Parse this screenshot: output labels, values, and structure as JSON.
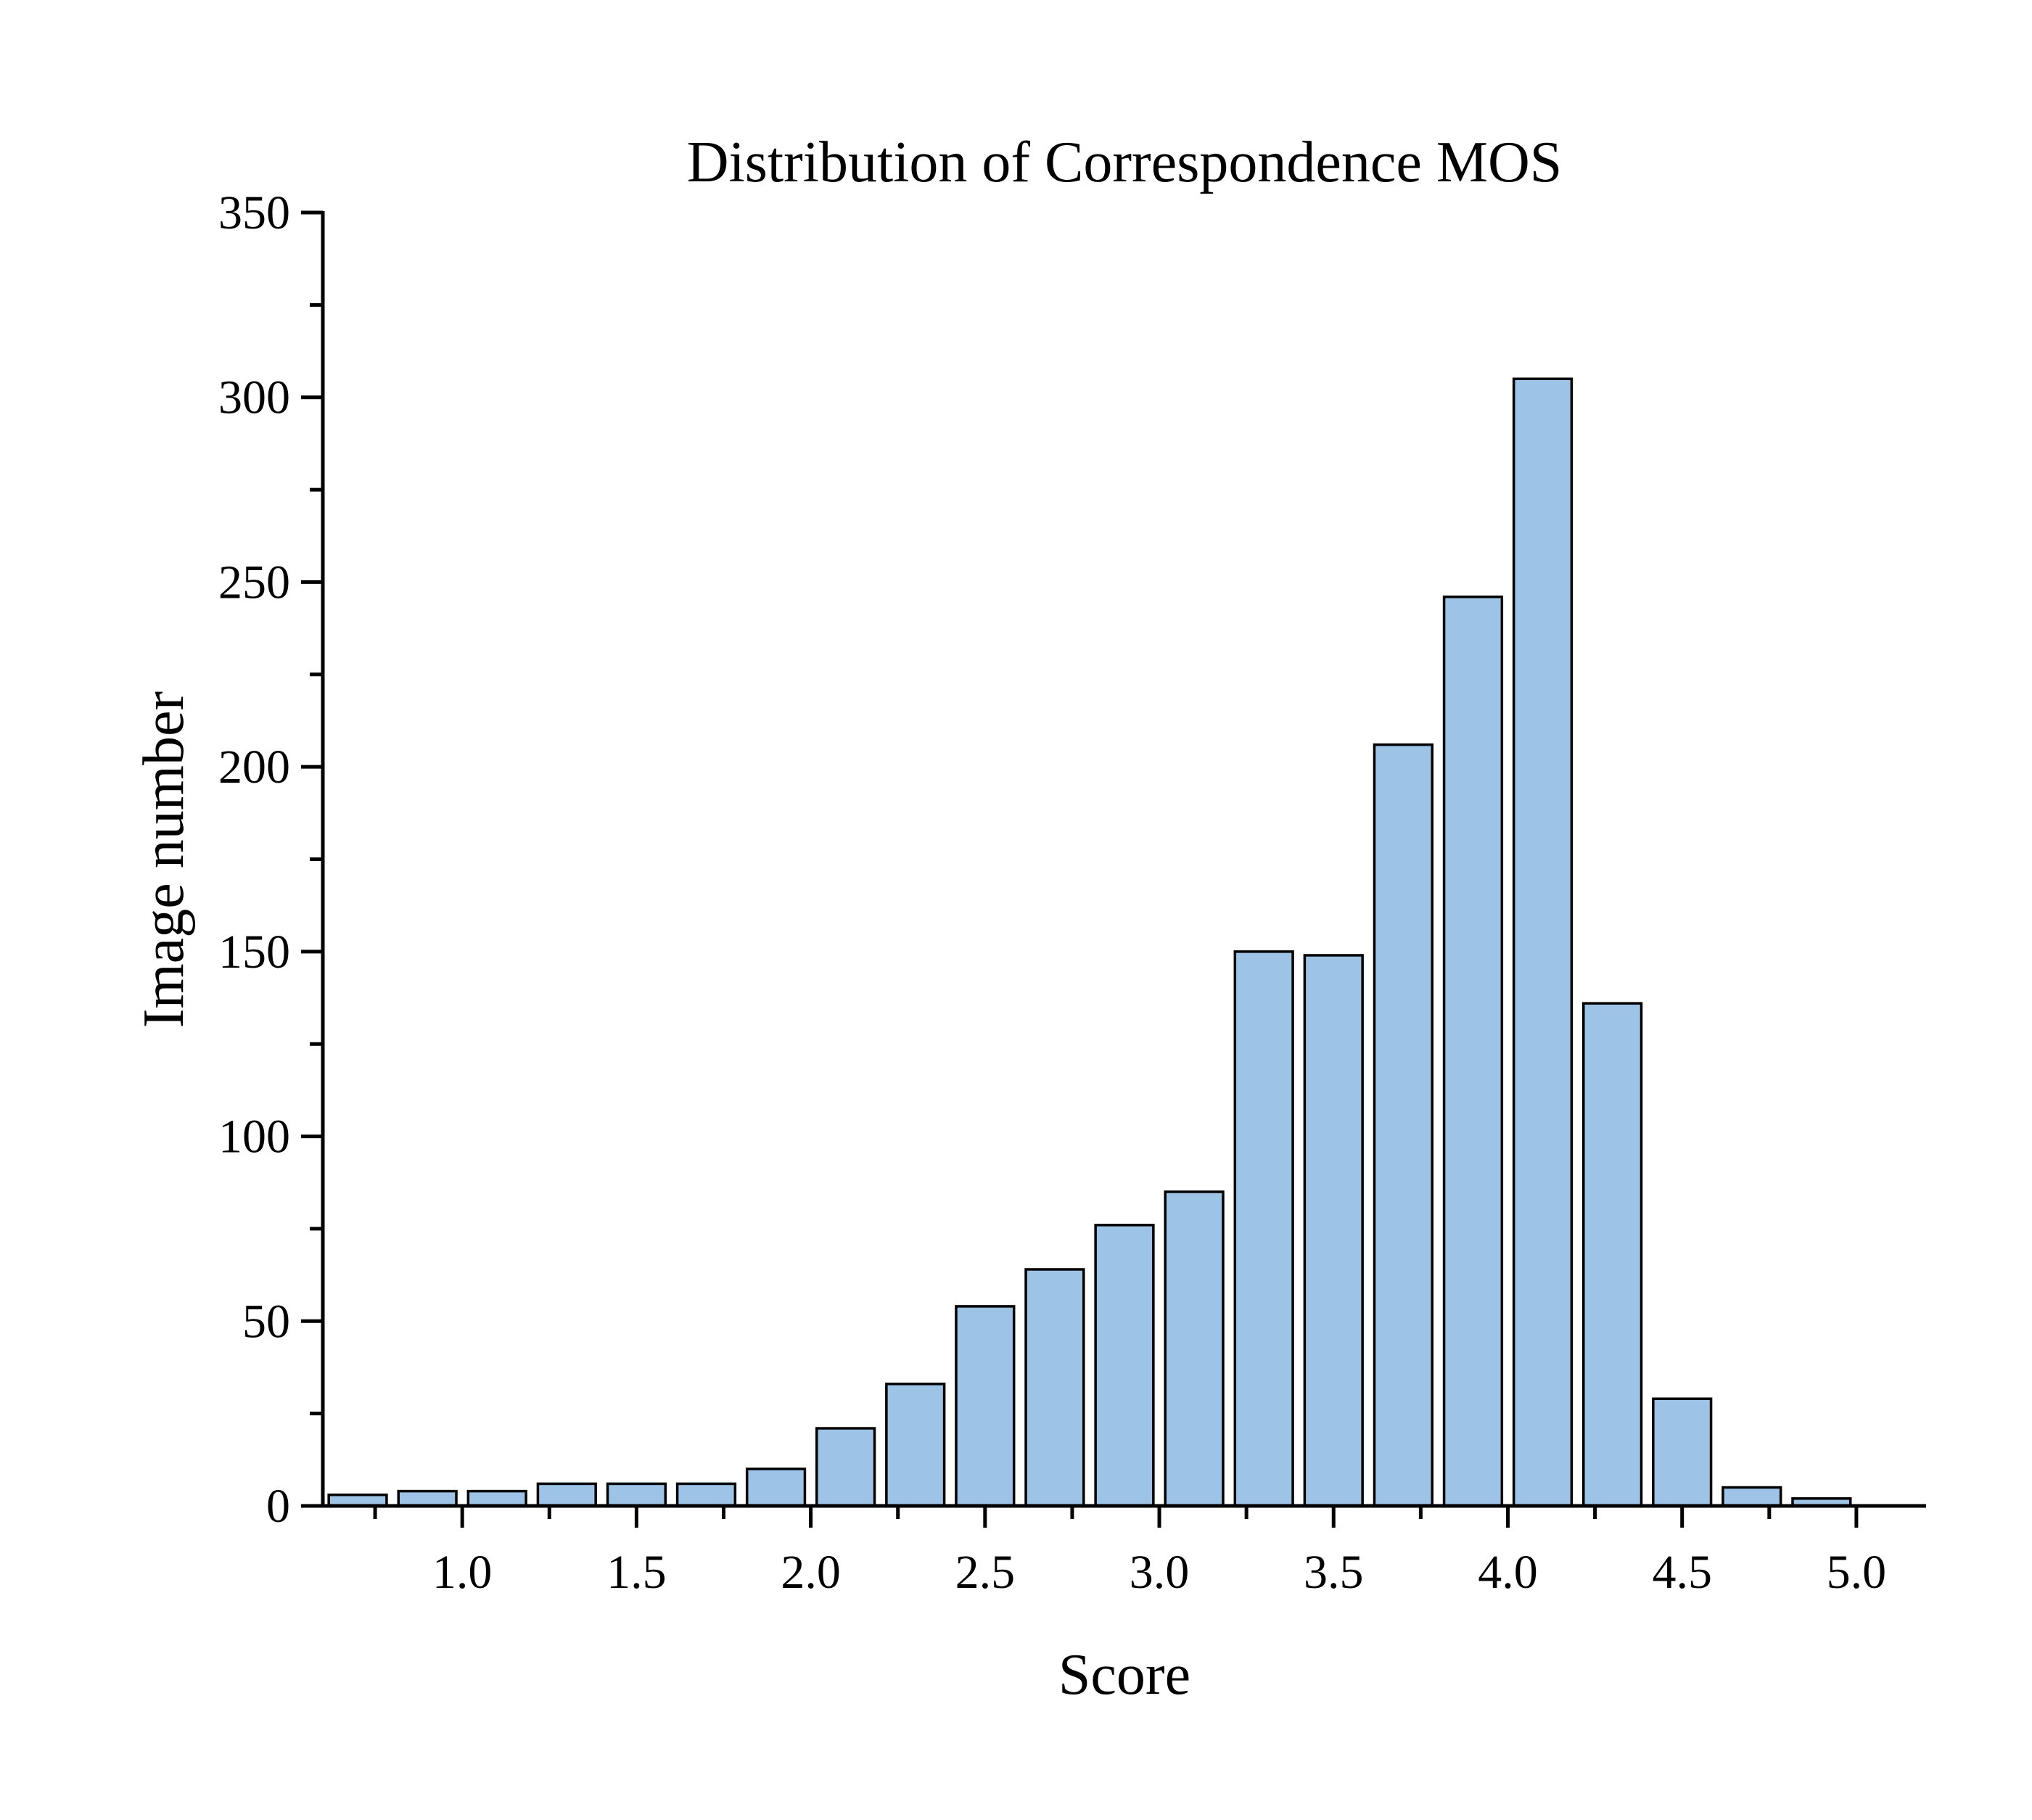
{
  "chart_data": {
    "type": "bar",
    "title": "Distribution of Correspondence MOS",
    "xlabel": "Score",
    "ylabel": "Image number",
    "xlim": [
      0.6,
      5.2
    ],
    "ylim": [
      0,
      350
    ],
    "x_major_ticks": [
      1.0,
      1.5,
      2.0,
      2.5,
      3.0,
      3.5,
      4.0,
      4.5,
      5.0
    ],
    "x_tick_labels": [
      "1.0",
      "1.5",
      "2.0",
      "2.5",
      "3.0",
      "3.5",
      "4.0",
      "4.5",
      "5.0"
    ],
    "y_major_ticks": [
      0,
      50,
      100,
      150,
      200,
      250,
      300,
      350
    ],
    "y_tick_labels": [
      "0",
      "50",
      "100",
      "150",
      "200",
      "250",
      "300",
      "350"
    ],
    "bin_width": 0.2,
    "x": [
      0.7,
      0.9,
      1.1,
      1.3,
      1.5,
      1.7,
      1.9,
      2.1,
      2.3,
      2.5,
      2.7,
      2.9,
      3.1,
      3.3,
      3.5,
      3.7,
      3.9,
      4.1,
      4.3,
      4.5,
      4.7,
      4.9
    ],
    "values": [
      3,
      4,
      4,
      6,
      6,
      6,
      10,
      21,
      33,
      54,
      64,
      76,
      85,
      150,
      149,
      206,
      246,
      305,
      136,
      29,
      5,
      2
    ],
    "bar_color": "#9dc3e6",
    "grid": false,
    "legend": "none"
  }
}
